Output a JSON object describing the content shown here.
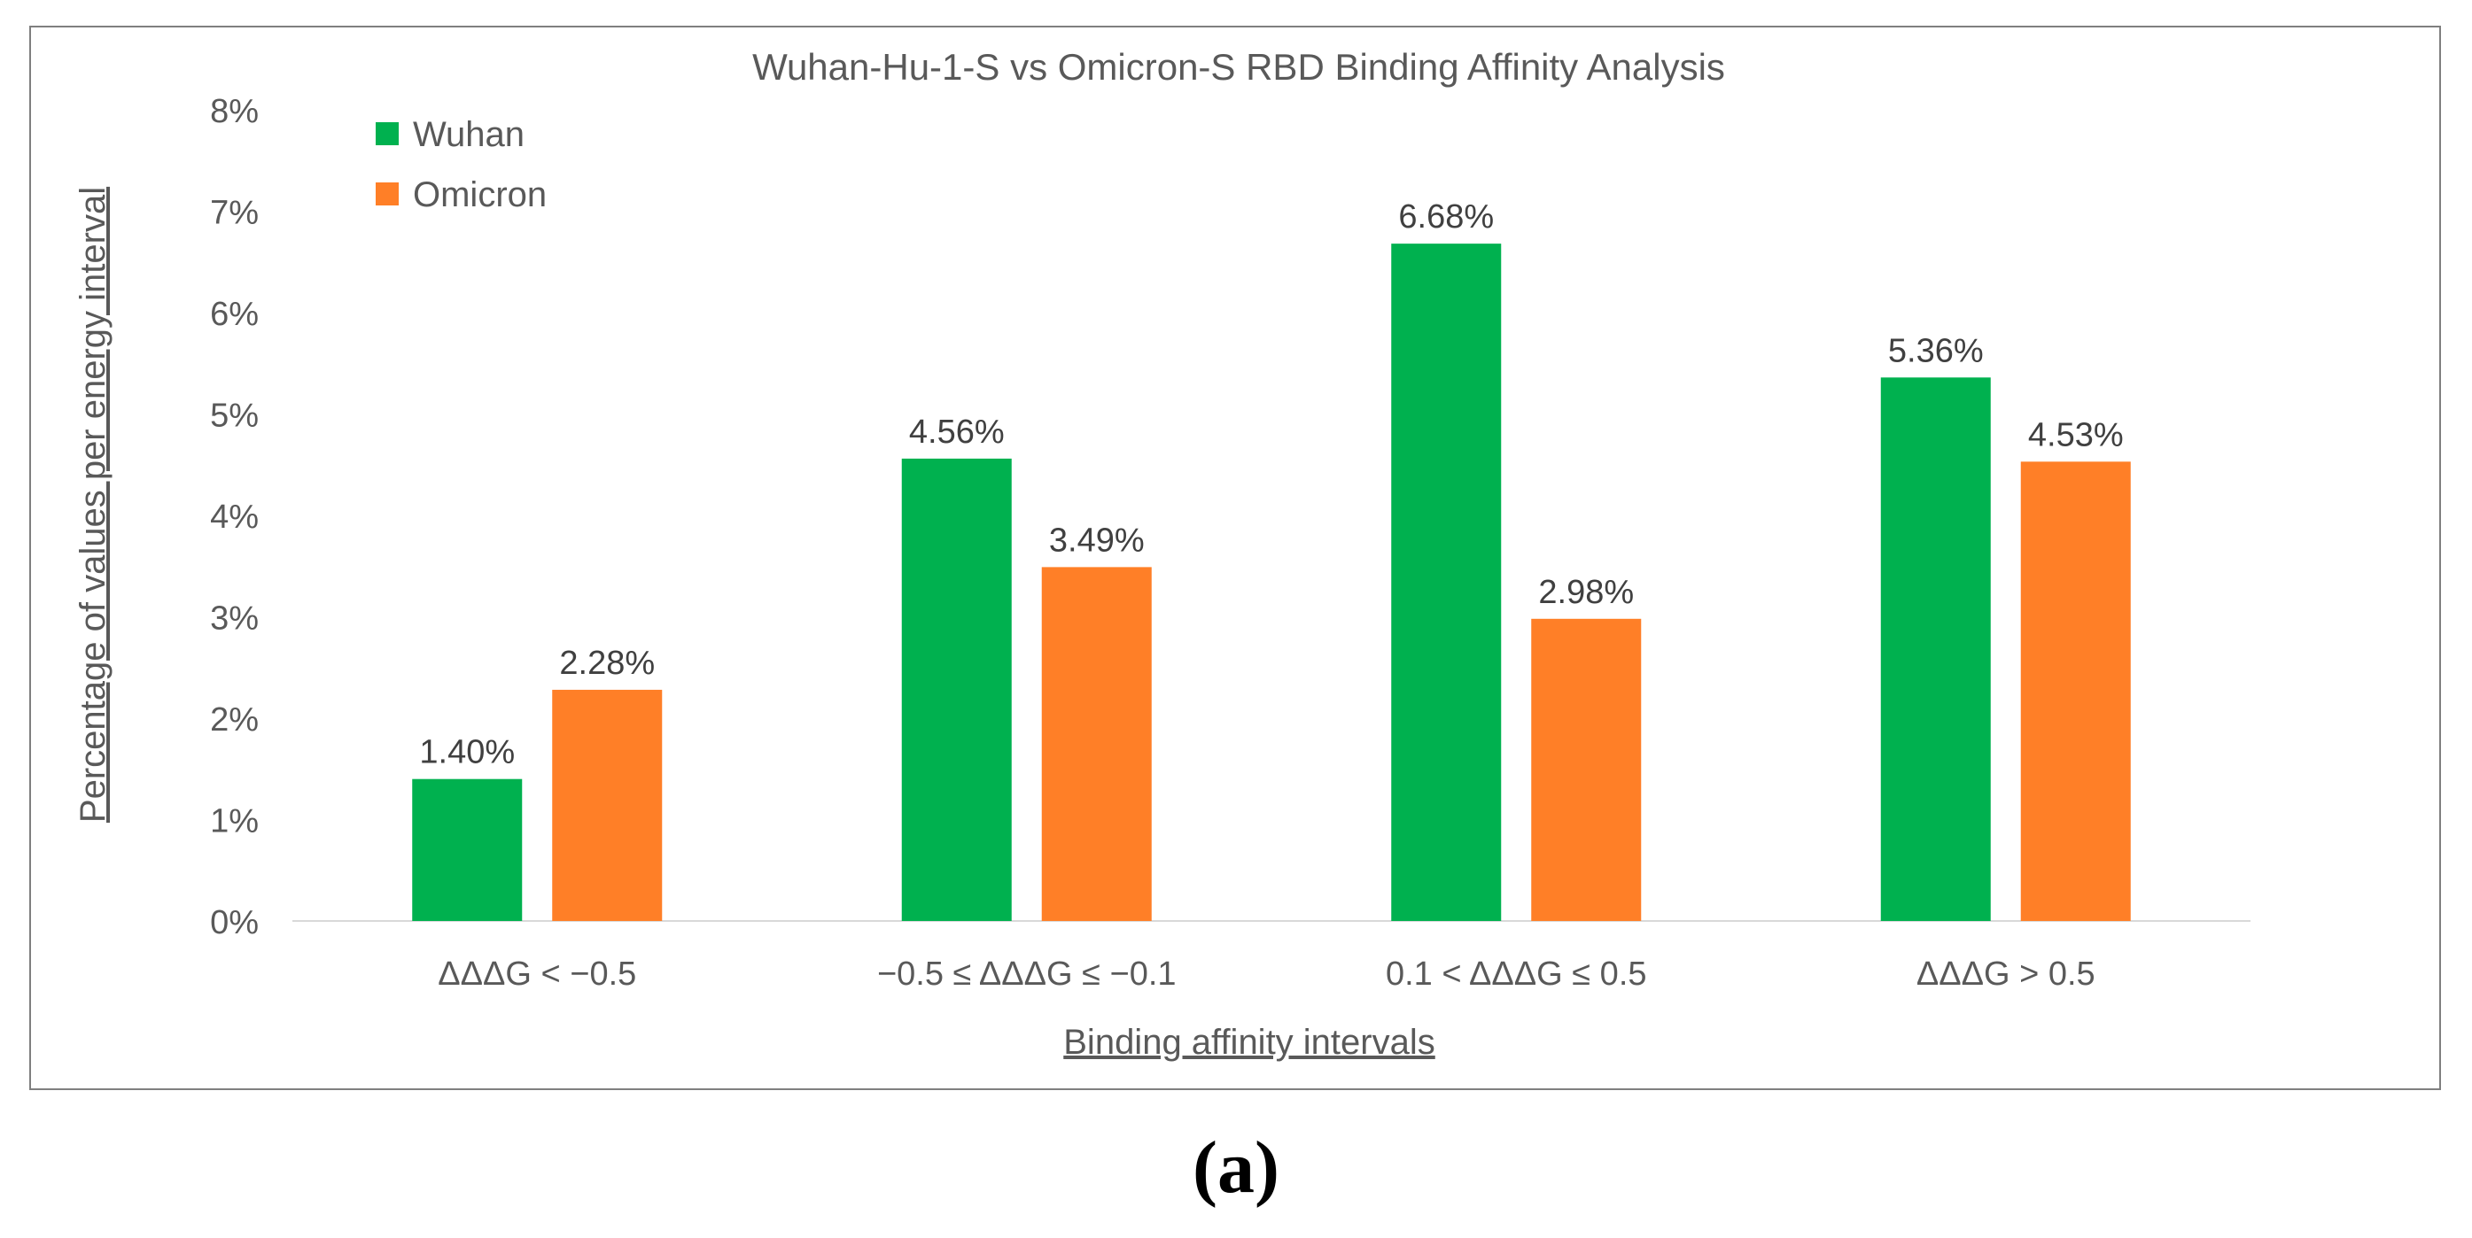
{
  "panel_label": "(a)",
  "chart_data": {
    "type": "bar",
    "title": "Wuhan-Hu-1-S vs Omicron-S RBD Binding Affinity Analysis",
    "xlabel": "Binding affinity intervals",
    "ylabel": "Percentage of values per energy interval",
    "categories": [
      "ΔΔΔG < −0.5",
      "−0.5 ≤ ΔΔΔG ≤ −0.1",
      "0.1 < ΔΔΔG ≤ 0.5",
      "ΔΔΔG > 0.5"
    ],
    "series": [
      {
        "name": "Wuhan",
        "color": "#00b14f",
        "values": [
          1.4,
          4.56,
          6.68,
          5.36
        ],
        "labels": [
          "1.40%",
          "4.56%",
          "6.68%",
          "5.36%"
        ]
      },
      {
        "name": "Omicron",
        "color": "#ff7f27",
        "values": [
          2.28,
          3.49,
          2.98,
          4.53
        ],
        "labels": [
          "2.28%",
          "3.49%",
          "2.98%",
          "4.53%"
        ]
      }
    ],
    "ylim": [
      0,
      8
    ],
    "yticks": [
      0,
      1,
      2,
      3,
      4,
      5,
      6,
      7,
      8
    ],
    "ytick_labels": [
      "0%",
      "1%",
      "2%",
      "3%",
      "4%",
      "5%",
      "6%",
      "7%",
      "8%"
    ],
    "grid": false,
    "legend_position": "top-left"
  }
}
